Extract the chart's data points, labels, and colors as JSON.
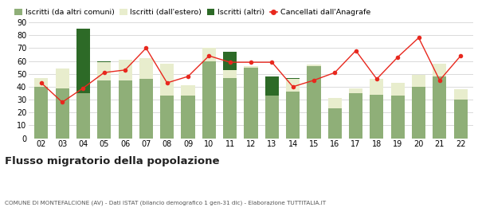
{
  "years": [
    "02",
    "03",
    "04",
    "05",
    "06",
    "07",
    "08",
    "09",
    "10",
    "11",
    "12",
    "13",
    "14",
    "15",
    "16",
    "17",
    "18",
    "19",
    "20",
    "21",
    "22"
  ],
  "iscritti_altri_comuni": [
    40,
    39,
    35,
    45,
    45,
    46,
    33,
    33,
    60,
    47,
    55,
    33,
    36,
    56,
    23,
    35,
    34,
    33,
    40,
    48,
    30
  ],
  "iscritti_estero": [
    7,
    15,
    0,
    14,
    16,
    16,
    25,
    8,
    10,
    6,
    1,
    0,
    10,
    1,
    8,
    4,
    12,
    10,
    9,
    10,
    8
  ],
  "iscritti_altri": [
    0,
    0,
    50,
    1,
    0,
    0,
    0,
    0,
    0,
    14,
    0,
    15,
    1,
    0,
    0,
    0,
    0,
    0,
    0,
    0,
    0
  ],
  "cancellati": [
    43,
    28,
    39,
    51,
    53,
    70,
    43,
    48,
    64,
    59,
    59,
    59,
    40,
    45,
    51,
    68,
    46,
    63,
    78,
    45,
    64
  ],
  "color_comuni": "#8faf78",
  "color_estero": "#e8edcd",
  "color_altri": "#2d6a27",
  "color_cancellati": "#e8281e",
  "bg_color": "#ffffff",
  "grid_color": "#cccccc",
  "ylim": [
    0,
    90
  ],
  "yticks": [
    0,
    10,
    20,
    30,
    40,
    50,
    60,
    70,
    80,
    90
  ],
  "title": "Flusso migratorio della popolazione",
  "subtitle": "COMUNE DI MONTEFALCIONE (AV) - Dati ISTAT (bilancio demografico 1 gen-31 dic) - Elaborazione TUTTITALIA.IT",
  "legend_labels": [
    "Iscritti (da altri comuni)",
    "Iscritti (dall'estero)",
    "Iscritti (altri)",
    "Cancellati dall'Anagrafe"
  ]
}
